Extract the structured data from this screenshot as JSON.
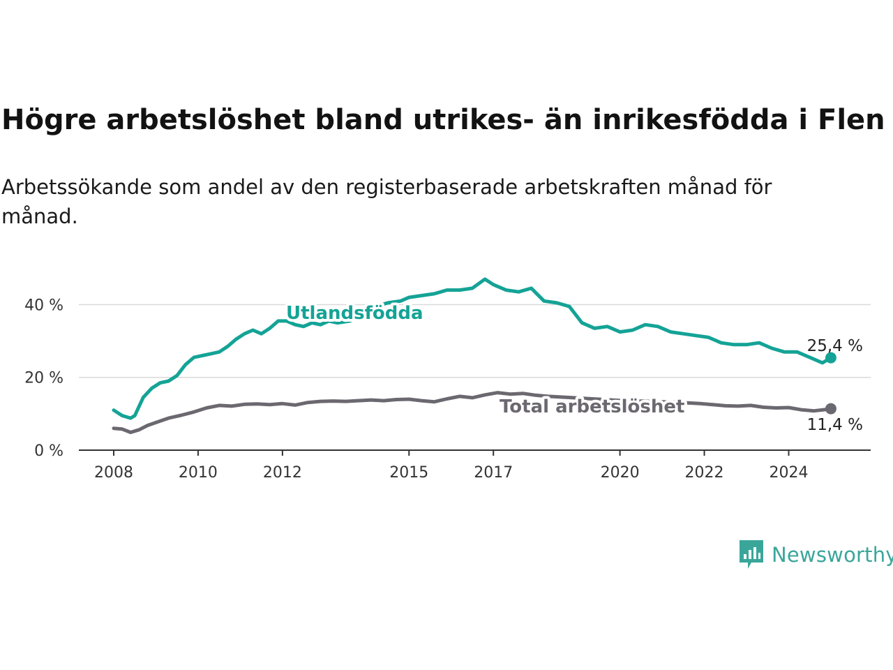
{
  "title": "Högre arbetslöshet bland utrikes- än inrikesfödda i Flen",
  "subtitle": "Arbetssökande som andel av den registerbaserade arbetskraften månad för månad.",
  "brand": {
    "name": "Newsworthy",
    "icon": "newsworthy-logo-icon",
    "color": "#3aa69a"
  },
  "chart_data": {
    "type": "line",
    "x_range": [
      2008.0,
      2025.1
    ],
    "x_ticks": [
      {
        "value": 2008,
        "label": "2008"
      },
      {
        "value": 2010,
        "label": "2010"
      },
      {
        "value": 2012,
        "label": "2012"
      },
      {
        "value": 2015,
        "label": "2015"
      },
      {
        "value": 2017,
        "label": "2017"
      },
      {
        "value": 2020,
        "label": "2020"
      },
      {
        "value": 2022,
        "label": "2022"
      },
      {
        "value": 2024,
        "label": "2024"
      }
    ],
    "y_range": [
      0,
      47
    ],
    "y_ticks": [
      {
        "value": 0,
        "label": "0 %"
      },
      {
        "value": 20,
        "label": "20 %"
      },
      {
        "value": 40,
        "label": "40 %"
      }
    ],
    "grid": true,
    "series": [
      {
        "name": "Utlandsfödda",
        "color": "#14a396",
        "end_label": "25,4 %",
        "x": [
          2008.0,
          2008.2,
          2008.4,
          2008.5,
          2008.7,
          2008.9,
          2009.1,
          2009.3,
          2009.5,
          2009.7,
          2009.9,
          2010.1,
          2010.3,
          2010.5,
          2010.7,
          2010.9,
          2011.1,
          2011.3,
          2011.5,
          2011.7,
          2011.9,
          2012.1,
          2012.3,
          2012.5,
          2012.7,
          2012.9,
          2013.1,
          2013.3,
          2013.6,
          2013.9,
          2014.2,
          2014.5,
          2014.8,
          2015.0,
          2015.3,
          2015.6,
          2015.9,
          2016.2,
          2016.5,
          2016.8,
          2017.0,
          2017.3,
          2017.6,
          2017.9,
          2018.2,
          2018.5,
          2018.8,
          2019.1,
          2019.4,
          2019.7,
          2020.0,
          2020.3,
          2020.6,
          2020.9,
          2021.2,
          2021.5,
          2021.8,
          2022.1,
          2022.4,
          2022.7,
          2023.0,
          2023.3,
          2023.6,
          2023.9,
          2024.2,
          2024.5,
          2024.8,
          2025.0
        ],
        "y": [
          11.0,
          9.5,
          8.8,
          9.5,
          14.5,
          17.0,
          18.5,
          19.0,
          20.5,
          23.5,
          25.5,
          26.0,
          26.5,
          27.0,
          28.5,
          30.5,
          32.0,
          33.0,
          32.0,
          33.5,
          35.5,
          35.5,
          34.5,
          34.0,
          35.0,
          34.5,
          35.5,
          35.0,
          35.5,
          37.5,
          39.5,
          40.5,
          41.0,
          42.0,
          42.5,
          43.0,
          44.0,
          44.0,
          44.5,
          47.0,
          45.5,
          44.0,
          43.5,
          44.5,
          41.0,
          40.5,
          39.5,
          35.0,
          33.5,
          34.0,
          32.5,
          33.0,
          34.5,
          34.0,
          32.5,
          32.0,
          31.5,
          31.0,
          29.5,
          29.0,
          29.0,
          29.5,
          28.0,
          27.0,
          27.0,
          25.5,
          24.0,
          25.4
        ]
      },
      {
        "name": "Total arbetslöshet",
        "color": "#6b6870",
        "end_label": "11,4 %",
        "x": [
          2008.0,
          2008.2,
          2008.4,
          2008.6,
          2008.8,
          2009.0,
          2009.3,
          2009.6,
          2009.9,
          2010.2,
          2010.5,
          2010.8,
          2011.1,
          2011.4,
          2011.7,
          2012.0,
          2012.3,
          2012.6,
          2012.9,
          2013.2,
          2013.5,
          2013.8,
          2014.1,
          2014.4,
          2014.7,
          2015.0,
          2015.3,
          2015.6,
          2015.9,
          2016.2,
          2016.5,
          2016.8,
          2017.1,
          2017.4,
          2017.7,
          2018.0,
          2018.3,
          2018.6,
          2018.9,
          2019.2,
          2019.5,
          2019.8,
          2020.1,
          2020.4,
          2020.7,
          2021.0,
          2021.3,
          2021.6,
          2021.9,
          2022.2,
          2022.5,
          2022.8,
          2023.1,
          2023.4,
          2023.7,
          2024.0,
          2024.3,
          2024.6,
          2024.9,
          2025.0
        ],
        "y": [
          6.0,
          5.8,
          4.9,
          5.6,
          6.8,
          7.6,
          8.8,
          9.6,
          10.5,
          11.6,
          12.3,
          12.1,
          12.6,
          12.7,
          12.5,
          12.8,
          12.4,
          13.1,
          13.4,
          13.5,
          13.4,
          13.6,
          13.8,
          13.6,
          13.9,
          14.0,
          13.6,
          13.3,
          14.1,
          14.8,
          14.4,
          15.2,
          15.8,
          15.4,
          15.6,
          15.1,
          14.8,
          14.6,
          14.4,
          14.2,
          14.0,
          13.8,
          13.6,
          13.5,
          13.4,
          13.3,
          13.2,
          13.0,
          12.8,
          12.5,
          12.2,
          12.1,
          12.3,
          11.8,
          11.6,
          11.7,
          11.1,
          10.8,
          11.2,
          11.4
        ]
      }
    ]
  }
}
